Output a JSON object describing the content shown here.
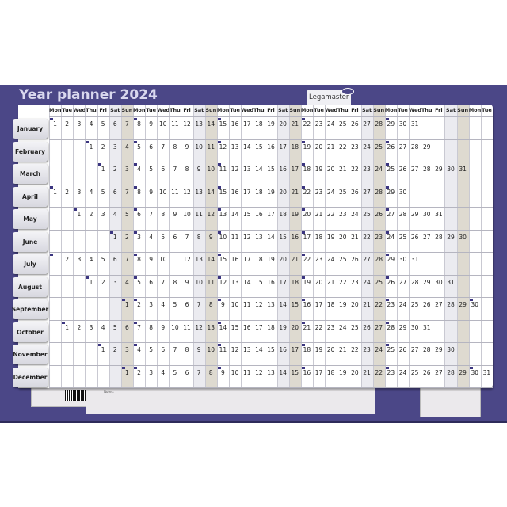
{
  "title": "Year planner 2024",
  "brand": "Legamaster",
  "notes_label": "Notes:",
  "weekday_headers": [
    "Mon",
    "Tue",
    "Wed",
    "Thu",
    "Fri",
    "Sat",
    "Sun"
  ],
  "column_count": 37,
  "colors": {
    "board": "#4b4787",
    "saturday": "#ebebf0",
    "sunday": "#dedad0",
    "week_marker": "#3b3580"
  },
  "months": [
    {
      "name": "January",
      "first_column": 0,
      "days": 31
    },
    {
      "name": "February",
      "first_column": 3,
      "days": 29
    },
    {
      "name": "March",
      "first_column": 4,
      "days": 31
    },
    {
      "name": "April",
      "first_column": 0,
      "days": 30
    },
    {
      "name": "May",
      "first_column": 2,
      "days": 31
    },
    {
      "name": "June",
      "first_column": 5,
      "days": 30
    },
    {
      "name": "July",
      "first_column": 0,
      "days": 31
    },
    {
      "name": "August",
      "first_column": 3,
      "days": 31
    },
    {
      "name": "September",
      "first_column": 6,
      "days": 30
    },
    {
      "name": "October",
      "first_column": 1,
      "days": 31
    },
    {
      "name": "November",
      "first_column": 4,
      "days": 30
    },
    {
      "name": "December",
      "first_column": 6,
      "days": 31
    }
  ]
}
